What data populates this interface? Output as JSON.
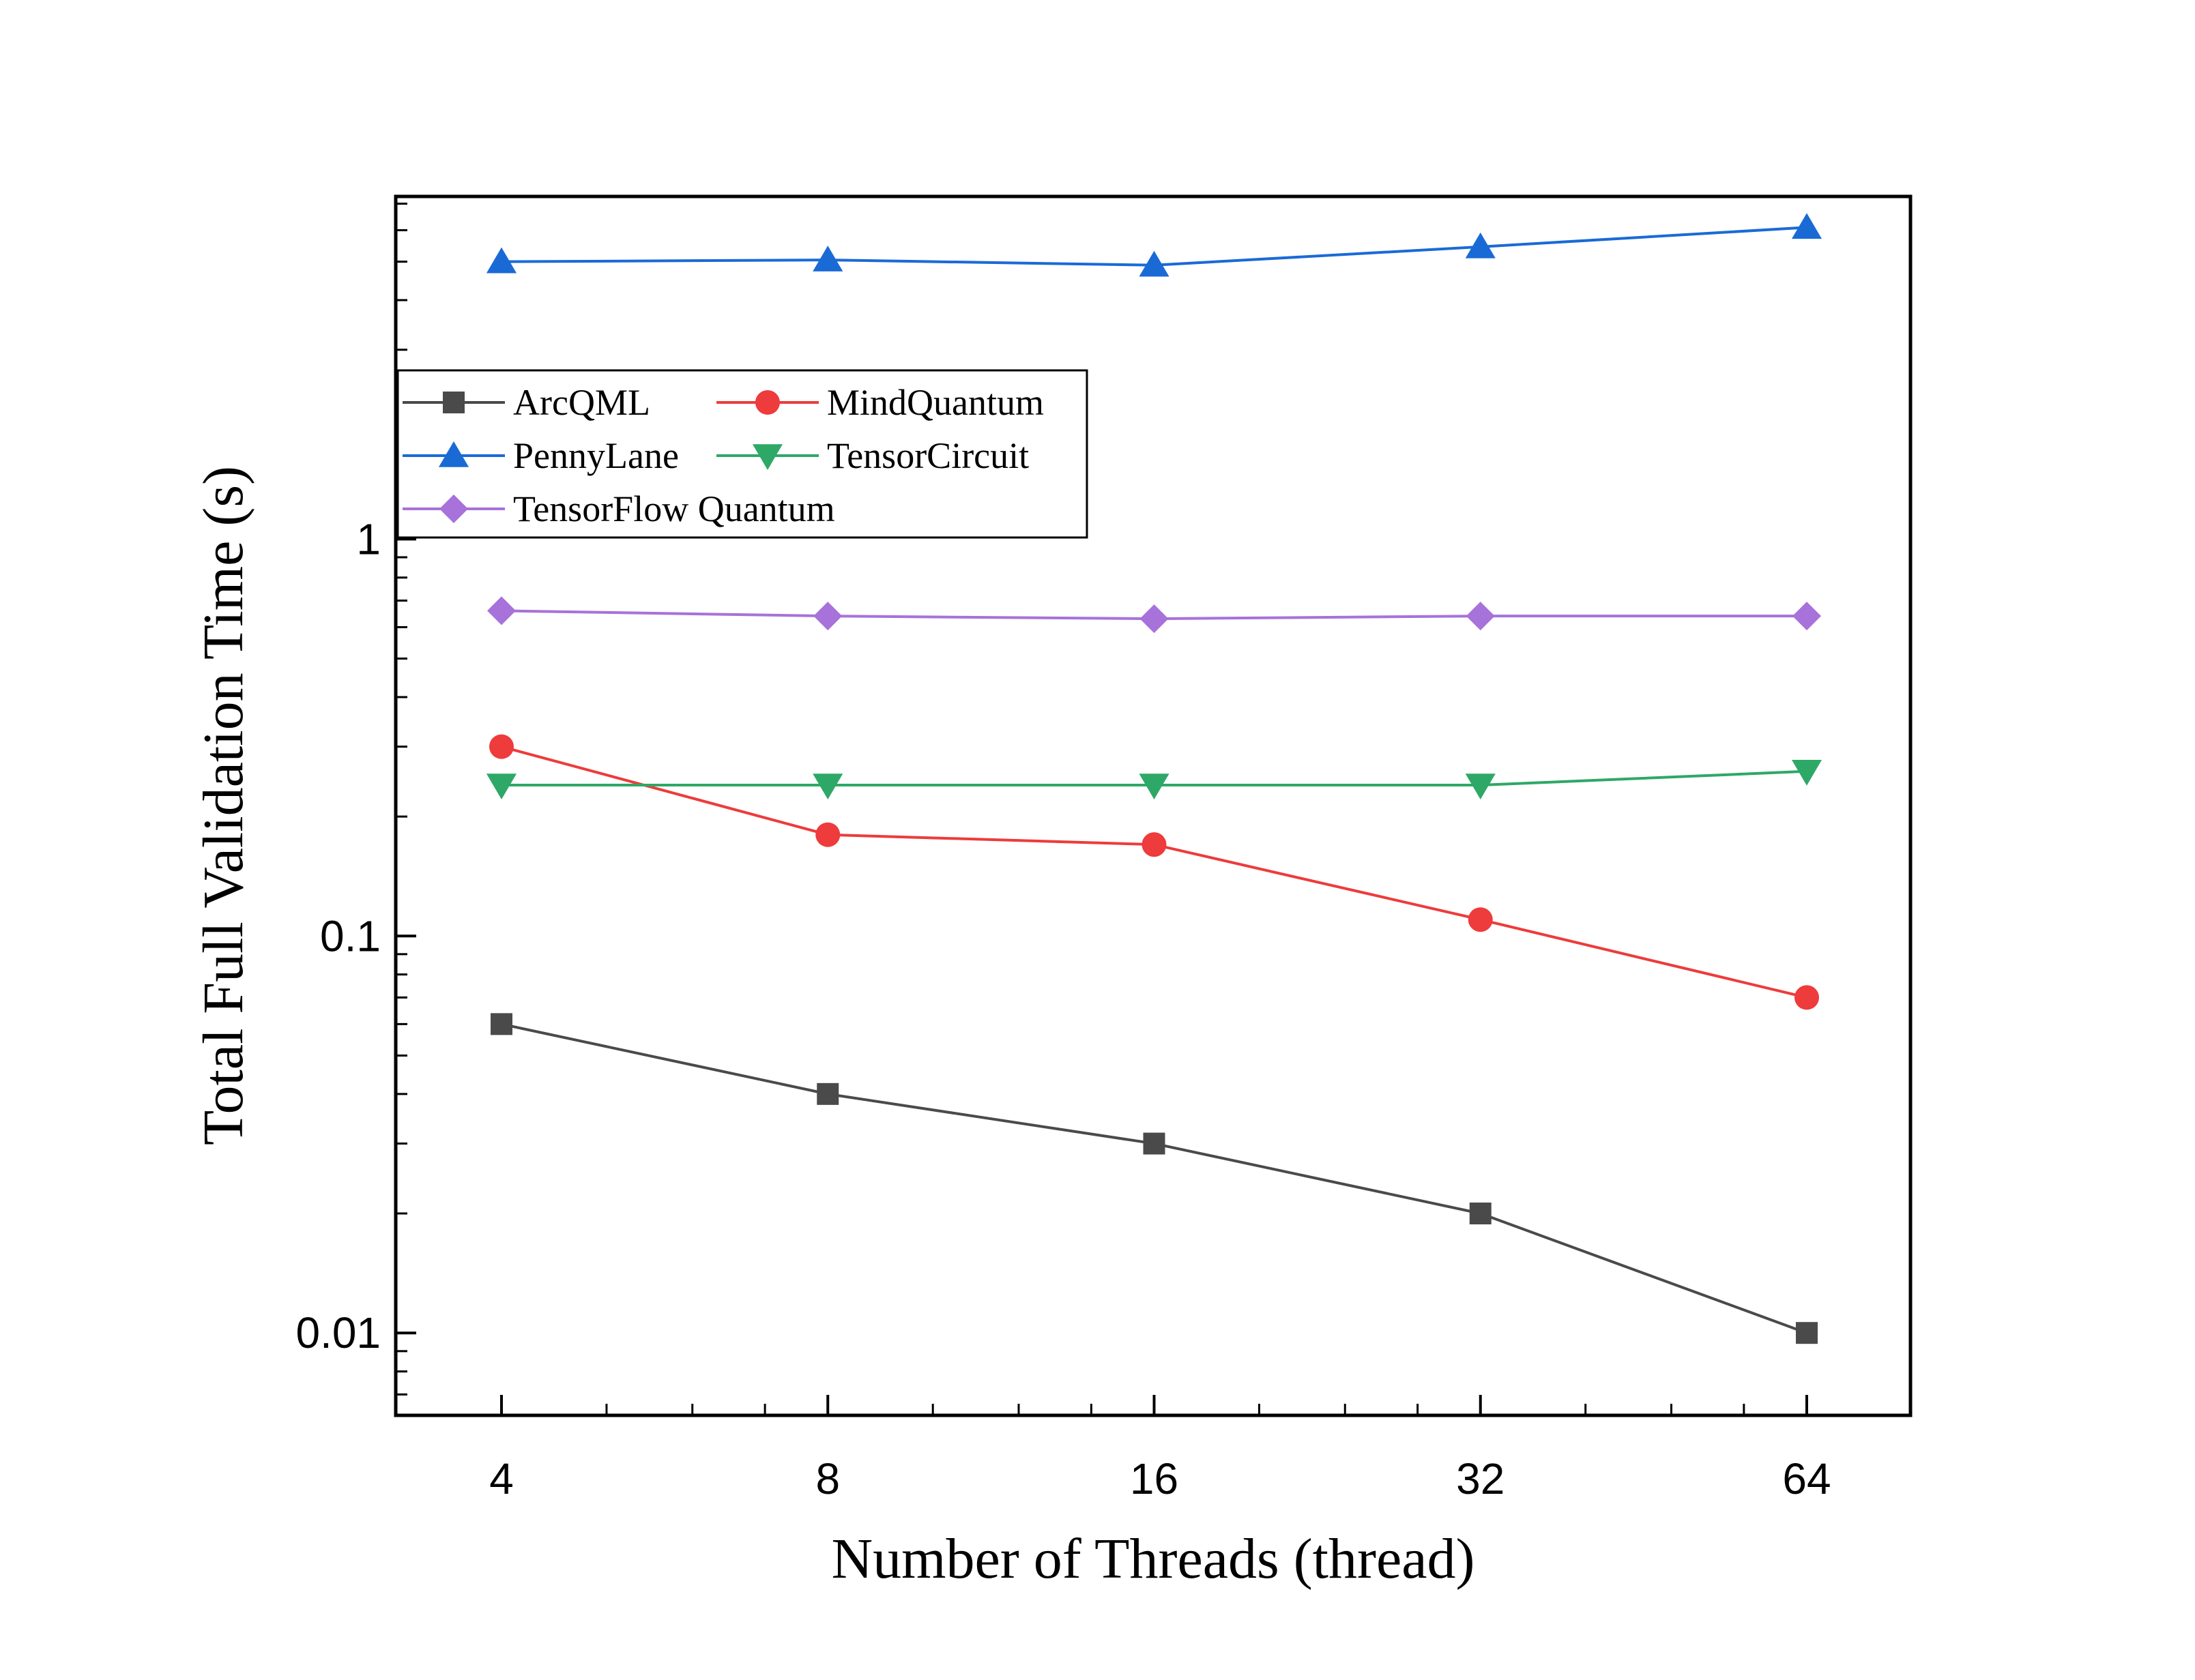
{
  "chart_data": {
    "type": "line",
    "title": "",
    "xlabel": "Number of Threads (thread)",
    "ylabel": "Total Full Validation Time (s)",
    "x": [
      4,
      8,
      16,
      32,
      64
    ],
    "x_tick_labels": [
      "4",
      "8",
      "16",
      "32",
      "64"
    ],
    "x_scale": "log2",
    "y_scale": "log10",
    "y_ticks": [
      0.01,
      0.1,
      1
    ],
    "y_tick_labels": [
      "0.01",
      "0.1",
      "1"
    ],
    "ylim": [
      0.0062,
      7.3
    ],
    "grid": false,
    "legend_position": "upper-left",
    "series": [
      {
        "name": "ArcQML",
        "marker": "square",
        "color": "#4a4a4a",
        "values": [
          0.06,
          0.04,
          0.03,
          0.02,
          0.01
        ]
      },
      {
        "name": "MindQuantum",
        "marker": "circle",
        "color": "#ee3b3b",
        "values": [
          0.3,
          0.18,
          0.17,
          0.11,
          0.07
        ]
      },
      {
        "name": "PennyLane",
        "marker": "triangle-up",
        "color": "#1a6ad6",
        "values": [
          5.0,
          5.05,
          4.9,
          5.45,
          6.1
        ]
      },
      {
        "name": "TensorCircuit",
        "marker": "triangle-down",
        "color": "#2ea866",
        "values": [
          0.24,
          0.24,
          0.24,
          0.24,
          0.26
        ]
      },
      {
        "name": "TensorFlow Quantum",
        "marker": "diamond",
        "color": "#a772da",
        "values": [
          0.66,
          0.64,
          0.63,
          0.64,
          0.64
        ]
      }
    ]
  }
}
